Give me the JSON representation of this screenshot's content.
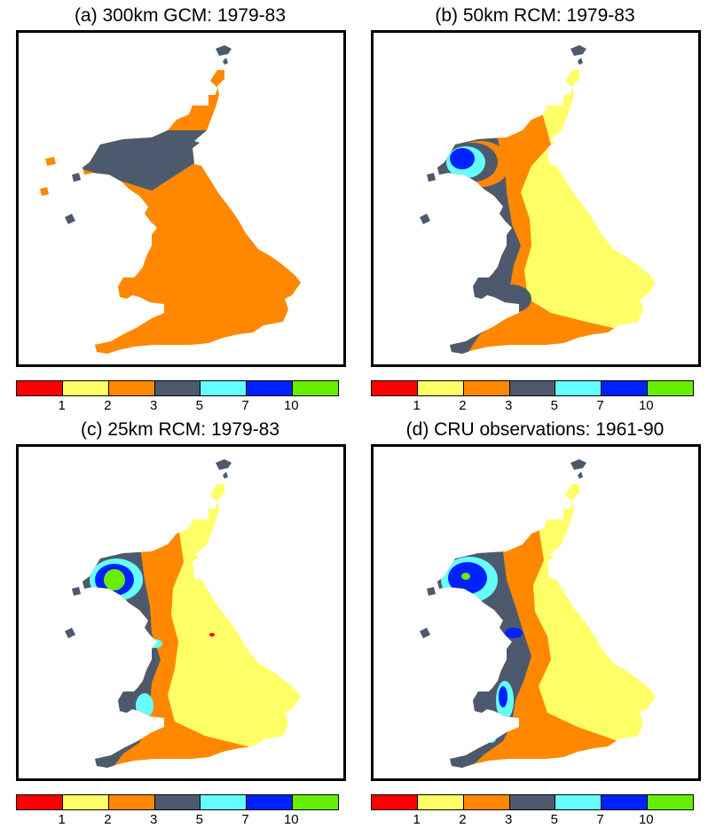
{
  "panels": [
    {
      "title": "(a) 300km GCM: 1979-83",
      "variant": "gcm300"
    },
    {
      "title": "(b) 50km RCM: 1979-83",
      "variant": "rcm50"
    },
    {
      "title": "(c) 25km RCM: 1979-83",
      "variant": "rcm25"
    },
    {
      "title": "(d) CRU observations: 1961-90",
      "variant": "cru"
    }
  ],
  "legend": {
    "colors": [
      "#ff0000",
      "#ffff66",
      "#ff8800",
      "#4d5a6e",
      "#66ffff",
      "#0022ff",
      "#66ee00"
    ],
    "ticks": [
      "1",
      "2",
      "3",
      "5",
      "7",
      "10"
    ]
  }
}
